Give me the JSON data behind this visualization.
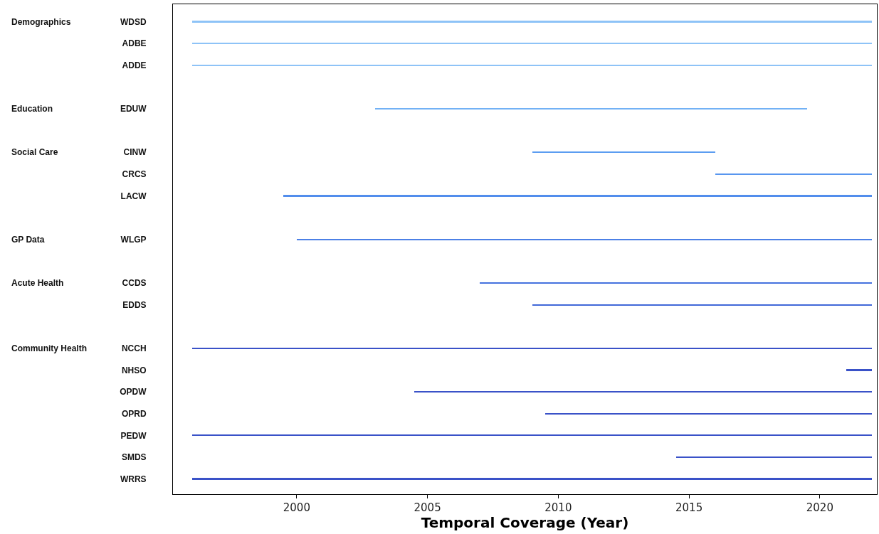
{
  "chart_data": {
    "type": "bar",
    "orientation": "horizontal",
    "xlabel": "Temporal Coverage (Year)",
    "categories": [
      "WDSD",
      "ADBE",
      "ADDE",
      null,
      "EDUW",
      null,
      "CINW",
      "CRCS",
      "LACW",
      null,
      "WLGP",
      null,
      "CCDS",
      "EDDS",
      null,
      "NCCH",
      "NHSO",
      "OPDW",
      "OPRD",
      "PEDW",
      "SMDS",
      "WRRS"
    ],
    "base": [
      1996,
      1996,
      1996,
      null,
      2003,
      null,
      2009,
      2016,
      1999.5,
      null,
      2000,
      null,
      2007,
      2009,
      null,
      1996,
      2021,
      2004.5,
      2009.5,
      1996,
      2014.5,
      1996
    ],
    "values": [
      26,
      26,
      26,
      null,
      16.5,
      null,
      7,
      6,
      22.5,
      null,
      22,
      null,
      15,
      13,
      null,
      26,
      1,
      17.5,
      12.5,
      26,
      7.5,
      26
    ],
    "colors": [
      "#8ec3f7",
      "#8ec3f7",
      "#8ec3f7",
      null,
      "#72b1f5",
      null,
      "#5c9df1",
      "#5896ef",
      "#528dec",
      null,
      "#4c80e6",
      null,
      "#4571de",
      "#4068d8",
      null,
      "#3a52c8",
      "#3a52c8",
      "#3a52c8",
      "#3a52c8",
      "#3a52c8",
      "#3a52c8",
      "#3a52c8"
    ],
    "annotations": [
      "Demographics",
      "Education",
      "Social Care",
      "GP Data",
      "Acute Health",
      "Community Health"
    ],
    "xlim": [
      1995.27,
      2022.18
    ],
    "xticks": [
      2000,
      2005,
      2010,
      2015,
      2020
    ]
  }
}
